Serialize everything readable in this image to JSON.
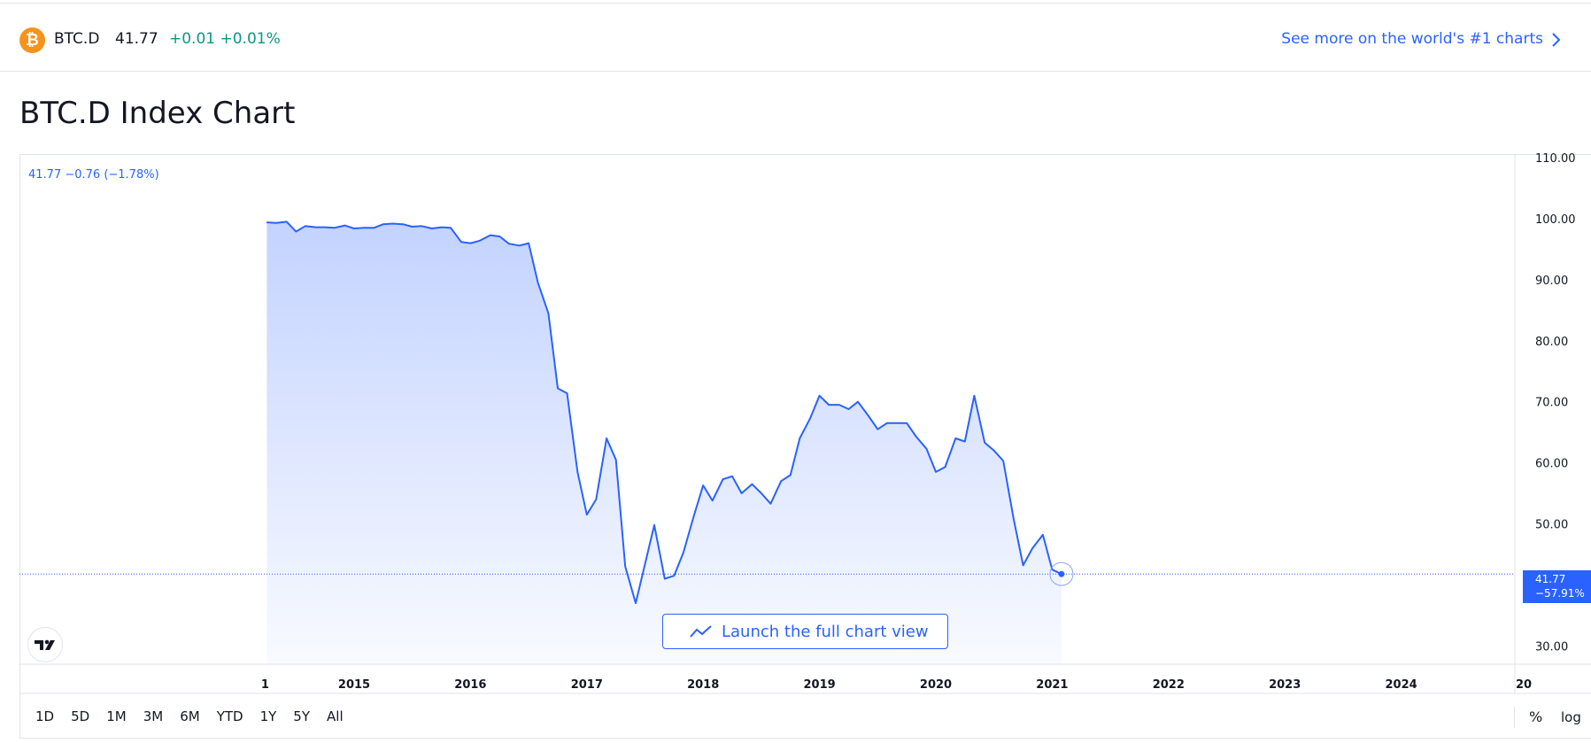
{
  "ticker": {
    "coin_glyph": "₿",
    "symbol": "BTC.D",
    "price": "41.77",
    "change": "+0.01 +0.01%",
    "more_link": "See more on the world's #1 charts",
    "coin_color": "#f7931a",
    "positive_color": "#089981",
    "link_color": "#2962ff"
  },
  "page": {
    "title": "BTC.D Index Chart"
  },
  "chart": {
    "legend": "41.77 −0.76 (−1.78%)",
    "price_tag": {
      "value": "41.77",
      "change": "−57.91%"
    },
    "launch_label": "Launch the full chart view",
    "launch_icon": "chart-line-icon",
    "logo_icon": "tradingview-logo-icon",
    "range_buttons": [
      "1D",
      "5D",
      "1M",
      "3M",
      "6M",
      "YTD",
      "1Y",
      "5Y",
      "All"
    ],
    "scale_buttons": {
      "percent": "%",
      "log": "log"
    },
    "line_color": "#2962ff"
  },
  "chart_data": {
    "type": "area",
    "ylim": [
      25,
      110
    ],
    "y_ticks": [
      "110.00",
      "100.00",
      "90.00",
      "80.00",
      "70.00",
      "60.00",
      "50.00",
      "30.00"
    ],
    "x_ticks": [
      "1",
      "2015",
      "2016",
      "2017",
      "2018",
      "2019",
      "2020",
      "2021",
      "2022",
      "2023",
      "2024",
      "20"
    ],
    "last_value": 41.77,
    "series": [
      {
        "values": [
          [
            2014.25,
            99.4
          ],
          [
            2014.33,
            99.3
          ],
          [
            2014.42,
            99.5
          ],
          [
            2014.5,
            97.9
          ],
          [
            2014.58,
            98.8
          ],
          [
            2014.67,
            98.6
          ],
          [
            2014.75,
            98.6
          ],
          [
            2014.83,
            98.5
          ],
          [
            2014.92,
            98.9
          ],
          [
            2015.0,
            98.4
          ],
          [
            2015.08,
            98.5
          ],
          [
            2015.17,
            98.5
          ],
          [
            2015.25,
            99.1
          ],
          [
            2015.33,
            99.2
          ],
          [
            2015.42,
            99.1
          ],
          [
            2015.5,
            98.7
          ],
          [
            2015.58,
            98.8
          ],
          [
            2015.67,
            98.4
          ],
          [
            2015.75,
            98.6
          ],
          [
            2015.83,
            98.5
          ],
          [
            2015.92,
            96.2
          ],
          [
            2016.0,
            96.0
          ],
          [
            2016.08,
            96.4
          ],
          [
            2016.17,
            97.3
          ],
          [
            2016.25,
            97.1
          ],
          [
            2016.33,
            95.9
          ],
          [
            2016.42,
            95.6
          ],
          [
            2016.5,
            96.0
          ],
          [
            2016.58,
            89.5
          ],
          [
            2016.67,
            84.5
          ],
          [
            2016.75,
            72.2
          ],
          [
            2016.83,
            71.4
          ],
          [
            2016.92,
            58.5
          ],
          [
            2017.0,
            51.5
          ],
          [
            2017.08,
            54.0
          ],
          [
            2017.17,
            64.0
          ],
          [
            2017.25,
            60.5
          ],
          [
            2017.33,
            43.0
          ],
          [
            2017.42,
            37.0
          ],
          [
            2017.58,
            49.8
          ],
          [
            2017.67,
            41.0
          ],
          [
            2017.75,
            41.5
          ],
          [
            2017.83,
            45.3
          ],
          [
            2017.92,
            51.3
          ],
          [
            2018.0,
            56.3
          ],
          [
            2018.08,
            53.8
          ],
          [
            2018.17,
            57.3
          ],
          [
            2018.25,
            57.8
          ],
          [
            2018.33,
            55.0
          ],
          [
            2018.42,
            56.5
          ],
          [
            2018.5,
            55.0
          ],
          [
            2018.58,
            53.3
          ],
          [
            2018.67,
            57.0
          ],
          [
            2018.75,
            58.0
          ],
          [
            2018.83,
            64.0
          ],
          [
            2018.92,
            67.3
          ],
          [
            2019.0,
            71.0
          ],
          [
            2019.08,
            69.5
          ],
          [
            2019.17,
            69.5
          ],
          [
            2019.25,
            68.8
          ],
          [
            2019.33,
            70.0
          ],
          [
            2019.42,
            67.7
          ],
          [
            2019.5,
            65.5
          ],
          [
            2019.58,
            66.5
          ],
          [
            2019.67,
            66.5
          ],
          [
            2019.75,
            66.5
          ],
          [
            2019.83,
            64.3
          ],
          [
            2019.92,
            62.3
          ],
          [
            2020.0,
            58.5
          ],
          [
            2020.08,
            59.3
          ],
          [
            2020.17,
            64.0
          ],
          [
            2020.25,
            63.5
          ],
          [
            2020.33,
            71.0
          ],
          [
            2020.42,
            63.3
          ],
          [
            2020.5,
            62.0
          ],
          [
            2020.58,
            60.3
          ],
          [
            2020.67,
            50.7
          ],
          [
            2020.75,
            43.2
          ],
          [
            2020.83,
            46.0
          ],
          [
            2020.92,
            48.2
          ],
          [
            2021.0,
            42.5
          ],
          [
            2021.08,
            41.77
          ]
        ]
      }
    ]
  }
}
